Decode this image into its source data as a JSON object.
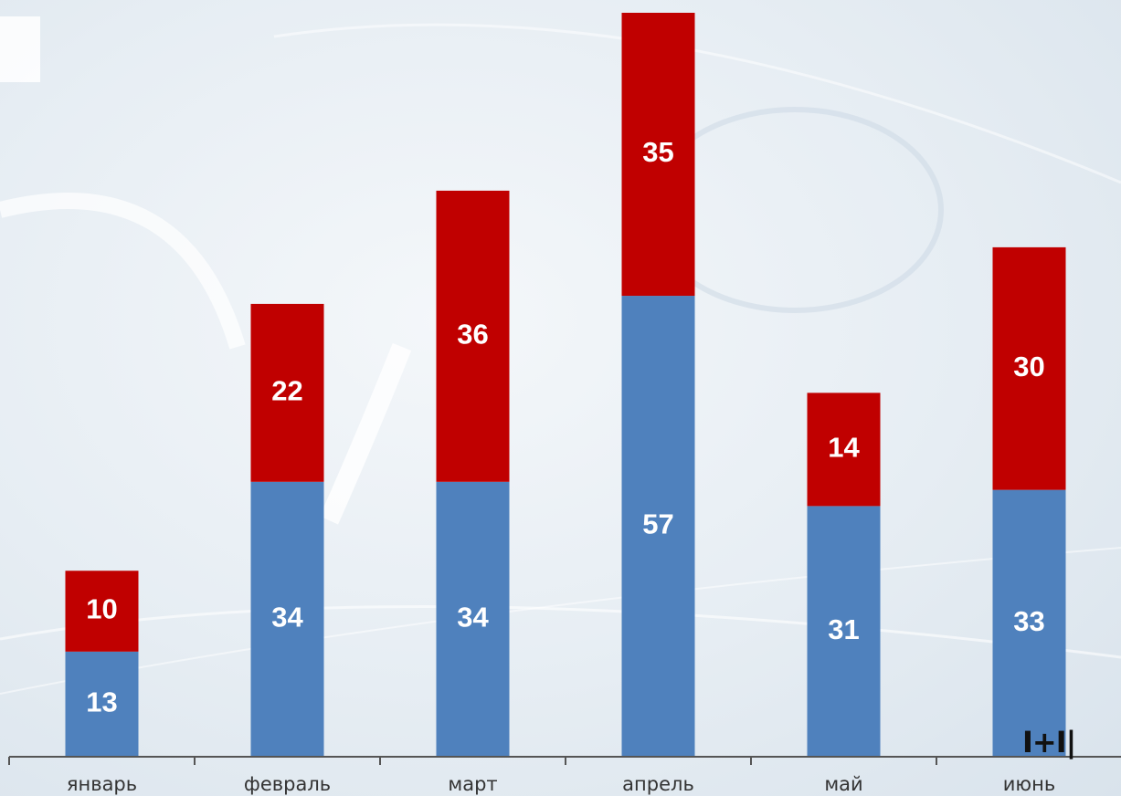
{
  "chart_data": {
    "type": "bar",
    "stacked": true,
    "categories": [
      "январь",
      "февраль",
      "март",
      "апрель",
      "май",
      "июнь"
    ],
    "series": [
      {
        "values": [
          13,
          34,
          34,
          57,
          31,
          33
        ],
        "color": "#4f81bd"
      },
      {
        "values": [
          10,
          22,
          36,
          35,
          14,
          30
        ],
        "color": "#c00000"
      }
    ],
    "data_labels": true,
    "ylim": [
      0,
      92
    ],
    "grid": false,
    "legend": "none"
  },
  "logo": {
    "text": "I+I|",
    "icon": "cross-logo-icon"
  }
}
